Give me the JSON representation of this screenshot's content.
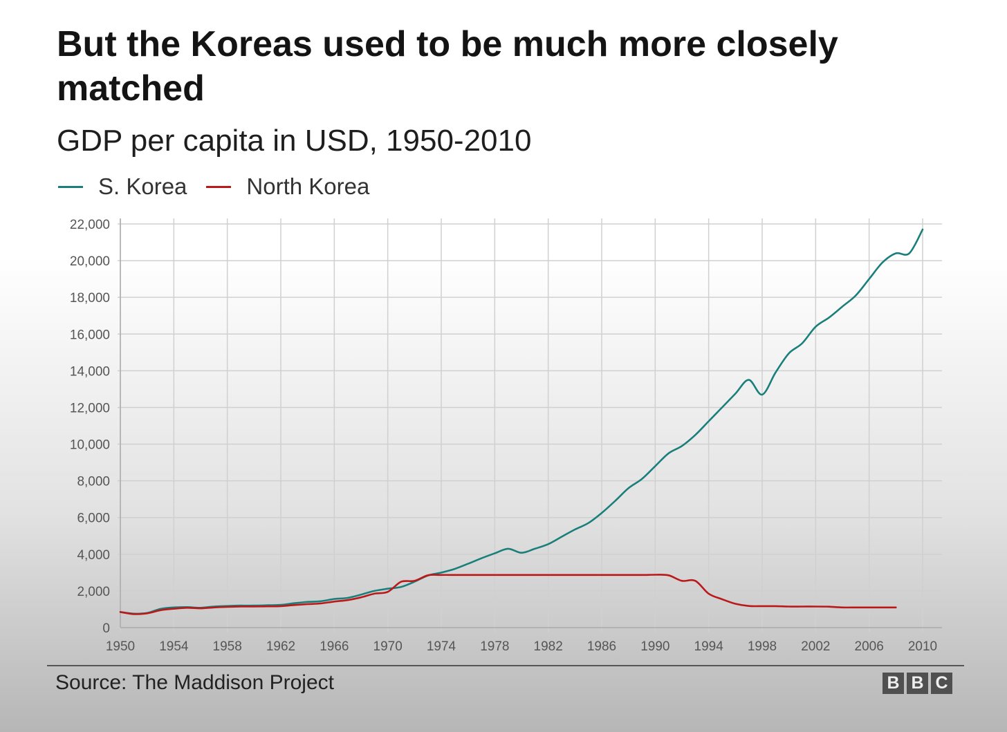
{
  "title": "But the Koreas used to be much more closely matched",
  "subtitle": "GDP per capita in USD, 1950-2010",
  "source": "Source: The Maddison Project",
  "logo": [
    "B",
    "B",
    "C"
  ],
  "legend": [
    {
      "name": "S. Korea",
      "color": "#1a7f7a"
    },
    {
      "name": "North Korea",
      "color": "#bb1919"
    }
  ],
  "chart_data": {
    "type": "line",
    "xlim": [
      1950,
      2010
    ],
    "ylim": [
      0,
      22000
    ],
    "x_ticks": [
      1950,
      1954,
      1958,
      1962,
      1966,
      1970,
      1974,
      1978,
      1982,
      1986,
      1990,
      1994,
      1998,
      2002,
      2006,
      2010
    ],
    "y_ticks": [
      0,
      2000,
      4000,
      6000,
      8000,
      10000,
      12000,
      14000,
      16000,
      18000,
      20000,
      22000
    ],
    "x_tick_labels": [
      "1950",
      "1954",
      "1958",
      "1962",
      "1966",
      "1970",
      "1974",
      "1978",
      "1982",
      "1986",
      "1990",
      "1994",
      "1998",
      "2002",
      "2006",
      "2010"
    ],
    "y_tick_labels": [
      "0",
      "2,000",
      "4,000",
      "6,000",
      "8,000",
      "10,000",
      "12,000",
      "14,000",
      "16,000",
      "18,000",
      "20,000",
      "22,000"
    ],
    "grid": true,
    "legend_position": "top-left",
    "series": [
      {
        "name": "S. Korea",
        "color": "#1a7f7a",
        "x": [
          1950,
          1951,
          1952,
          1953,
          1954,
          1955,
          1956,
          1957,
          1958,
          1959,
          1960,
          1961,
          1962,
          1963,
          1964,
          1965,
          1966,
          1967,
          1968,
          1969,
          1970,
          1971,
          1972,
          1973,
          1974,
          1975,
          1976,
          1977,
          1978,
          1979,
          1980,
          1981,
          1982,
          1983,
          1984,
          1985,
          1986,
          1987,
          1988,
          1989,
          1990,
          1991,
          1992,
          1993,
          1994,
          1995,
          1996,
          1997,
          1998,
          1999,
          2000,
          2001,
          2002,
          2003,
          2004,
          2005,
          2006,
          2007,
          2008,
          2009,
          2010
        ],
        "y": [
          850,
          760,
          800,
          1020,
          1100,
          1120,
          1080,
          1150,
          1180,
          1200,
          1200,
          1220,
          1240,
          1330,
          1400,
          1440,
          1560,
          1620,
          1800,
          2000,
          2120,
          2220,
          2500,
          2840,
          3000,
          3200,
          3480,
          3780,
          4050,
          4300,
          4080,
          4300,
          4550,
          4950,
          5350,
          5700,
          6250,
          6900,
          7600,
          8100,
          8800,
          9500,
          9900,
          10500,
          11250,
          12000,
          12750,
          13500,
          12700,
          13900,
          14950,
          15500,
          16400,
          16900,
          17500,
          18100,
          19000,
          19900,
          20400,
          20400,
          21700
        ]
      },
      {
        "name": "North Korea",
        "color": "#bb1919",
        "x": [
          1950,
          1951,
          1952,
          1953,
          1954,
          1955,
          1956,
          1957,
          1958,
          1959,
          1960,
          1961,
          1962,
          1963,
          1964,
          1965,
          1966,
          1967,
          1968,
          1969,
          1970,
          1971,
          1972,
          1973,
          1974,
          1975,
          1976,
          1977,
          1978,
          1979,
          1980,
          1981,
          1982,
          1983,
          1984,
          1985,
          1986,
          1987,
          1988,
          1989,
          1990,
          1991,
          1992,
          1993,
          1994,
          1995,
          1996,
          1997,
          1998,
          1999,
          2000,
          2001,
          2002,
          2003,
          2004,
          2005,
          2006,
          2007,
          2008
        ],
        "y": [
          850,
          740,
          780,
          950,
          1030,
          1080,
          1050,
          1100,
          1130,
          1150,
          1150,
          1160,
          1170,
          1230,
          1280,
          1320,
          1420,
          1500,
          1650,
          1850,
          1950,
          2500,
          2550,
          2850,
          2870,
          2870,
          2870,
          2870,
          2870,
          2870,
          2870,
          2870,
          2870,
          2870,
          2870,
          2870,
          2870,
          2870,
          2870,
          2870,
          2880,
          2850,
          2550,
          2550,
          1850,
          1550,
          1300,
          1180,
          1170,
          1170,
          1150,
          1150,
          1150,
          1140,
          1100,
          1100,
          1100,
          1100,
          1100
        ]
      }
    ]
  }
}
